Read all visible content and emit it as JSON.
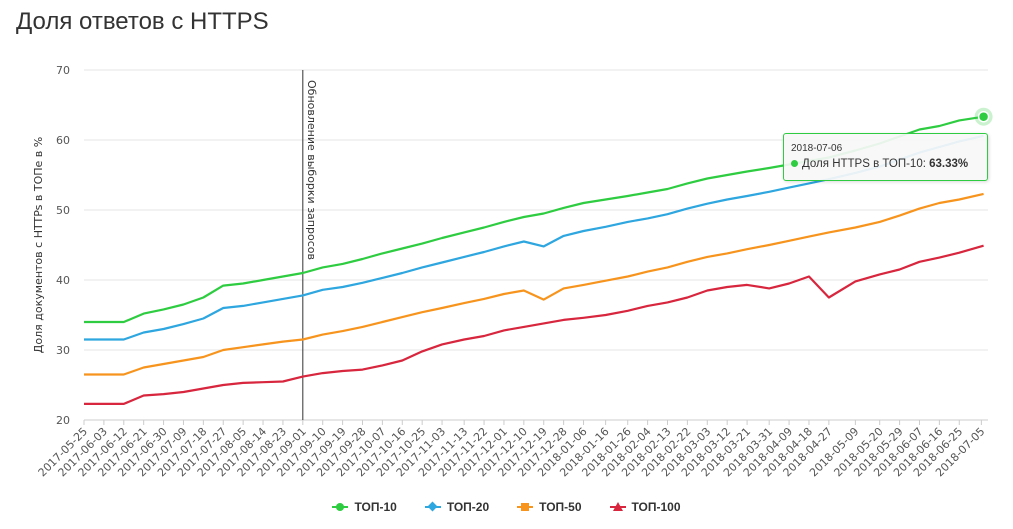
{
  "title": "Доля ответов с HTTPS",
  "tooltip": {
    "date": "2018-07-06",
    "series": "Доля HTTPS в ТОП-10",
    "value": "63.33%"
  },
  "chart_data": {
    "type": "line",
    "title": "Доля ответов с HTTPS",
    "ylabel": "Доля документов с HTTPs в ТОПе в %",
    "xlabel": "",
    "ylim": [
      20,
      70
    ],
    "yticks": [
      20,
      30,
      40,
      50,
      60,
      70
    ],
    "grid": true,
    "legend_position": "bottom",
    "x_ticks": [
      "2017-05-25",
      "2017-06-03",
      "2017-06-12",
      "2017-06-21",
      "2017-06-30",
      "2017-07-09",
      "2017-07-18",
      "2017-07-27",
      "2017-08-05",
      "2017-08-14",
      "2017-08-23",
      "2017-09-01",
      "2017-09-10",
      "2017-09-19",
      "2017-09-28",
      "2017-10-07",
      "2017-10-16",
      "2017-10-25",
      "2017-11-03",
      "2017-11-13",
      "2017-11-22",
      "2017-12-01",
      "2017-12-10",
      "2017-12-19",
      "2017-12-28",
      "2018-01-06",
      "2018-01-16",
      "2018-01-26",
      "2018-02-04",
      "2018-02-13",
      "2018-02-22",
      "2018-03-03",
      "2018-03-12",
      "2018-03-21",
      "2018-03-31",
      "2018-04-09",
      "2018-04-18",
      "2018-04-27",
      "2018-05-09",
      "2018-05-20",
      "2018-05-29",
      "2018-06-07",
      "2018-06-16",
      "2018-06-25",
      "2018-07-05"
    ],
    "annotation": {
      "date": "2017-09-01",
      "label": "Обновление выборки запросов"
    },
    "series": [
      {
        "name": "ТОП-10",
        "color": "#2ecc40",
        "marker": "circle",
        "x": [
          "2017-05-25",
          "2017-06-12",
          "2017-06-21",
          "2017-06-30",
          "2017-07-09",
          "2017-07-18",
          "2017-07-27",
          "2017-08-05",
          "2017-08-14",
          "2017-08-23",
          "2017-09-01",
          "2017-09-10",
          "2017-09-19",
          "2017-09-28",
          "2017-10-07",
          "2017-10-16",
          "2017-10-25",
          "2017-11-03",
          "2017-11-13",
          "2017-11-22",
          "2017-12-01",
          "2017-12-10",
          "2017-12-19",
          "2017-12-28",
          "2018-01-06",
          "2018-01-16",
          "2018-01-26",
          "2018-02-04",
          "2018-02-13",
          "2018-02-22",
          "2018-03-03",
          "2018-03-12",
          "2018-03-21",
          "2018-03-31",
          "2018-04-09",
          "2018-04-18",
          "2018-04-27",
          "2018-05-09",
          "2018-05-20",
          "2018-05-29",
          "2018-06-07",
          "2018-06-16",
          "2018-06-25",
          "2018-07-06"
        ],
        "y": [
          34.0,
          34.0,
          35.2,
          35.8,
          36.5,
          37.5,
          39.2,
          39.5,
          40.0,
          40.5,
          41.0,
          41.8,
          42.3,
          43.0,
          43.8,
          44.5,
          45.2,
          46.0,
          46.8,
          47.5,
          48.3,
          49.0,
          49.5,
          50.3,
          51.0,
          51.5,
          52.0,
          52.5,
          53.0,
          53.8,
          54.5,
          55.0,
          55.5,
          56.0,
          56.5,
          57.0,
          57.5,
          58.5,
          59.5,
          60.5,
          61.5,
          62.0,
          62.8,
          63.33
        ]
      },
      {
        "name": "ТОП-20",
        "color": "#2ea6df",
        "marker": "diamond",
        "x": [
          "2017-05-25",
          "2017-06-12",
          "2017-06-21",
          "2017-06-30",
          "2017-07-09",
          "2017-07-18",
          "2017-07-27",
          "2017-08-05",
          "2017-08-14",
          "2017-08-23",
          "2017-09-01",
          "2017-09-10",
          "2017-09-19",
          "2017-09-28",
          "2017-10-07",
          "2017-10-16",
          "2017-10-25",
          "2017-11-03",
          "2017-11-13",
          "2017-11-22",
          "2017-12-01",
          "2017-12-10",
          "2017-12-19",
          "2017-12-28",
          "2018-01-06",
          "2018-01-16",
          "2018-01-26",
          "2018-02-04",
          "2018-02-13",
          "2018-02-22",
          "2018-03-03",
          "2018-03-12",
          "2018-03-21",
          "2018-03-31",
          "2018-04-09",
          "2018-04-18",
          "2018-04-27",
          "2018-05-09",
          "2018-05-20",
          "2018-05-29",
          "2018-06-07",
          "2018-06-16",
          "2018-06-25",
          "2018-07-06"
        ],
        "y": [
          31.5,
          31.5,
          32.5,
          33.0,
          33.7,
          34.5,
          36.0,
          36.3,
          36.8,
          37.3,
          37.8,
          38.6,
          39.0,
          39.6,
          40.3,
          41.0,
          41.8,
          42.5,
          43.3,
          44.0,
          44.8,
          45.5,
          44.8,
          46.3,
          47.0,
          47.6,
          48.3,
          48.8,
          49.4,
          50.2,
          50.9,
          51.5,
          52.0,
          52.6,
          53.2,
          53.8,
          54.4,
          55.3,
          56.2,
          57.2,
          58.2,
          59.0,
          59.8,
          60.6
        ]
      },
      {
        "name": "ТОП-50",
        "color": "#f7941d",
        "marker": "square",
        "x": [
          "2017-05-25",
          "2017-06-12",
          "2017-06-21",
          "2017-06-30",
          "2017-07-09",
          "2017-07-18",
          "2017-07-27",
          "2017-08-05",
          "2017-08-14",
          "2017-08-23",
          "2017-09-01",
          "2017-09-10",
          "2017-09-19",
          "2017-09-28",
          "2017-10-07",
          "2017-10-16",
          "2017-10-25",
          "2017-11-03",
          "2017-11-13",
          "2017-11-22",
          "2017-12-01",
          "2017-12-10",
          "2017-12-19",
          "2017-12-28",
          "2018-01-06",
          "2018-01-16",
          "2018-01-26",
          "2018-02-04",
          "2018-02-13",
          "2018-02-22",
          "2018-03-03",
          "2018-03-12",
          "2018-03-21",
          "2018-03-31",
          "2018-04-09",
          "2018-04-18",
          "2018-04-27",
          "2018-05-09",
          "2018-05-20",
          "2018-05-29",
          "2018-06-07",
          "2018-06-16",
          "2018-06-25",
          "2018-07-06"
        ],
        "y": [
          26.5,
          26.5,
          27.5,
          28.0,
          28.5,
          29.0,
          30.0,
          30.4,
          30.8,
          31.2,
          31.5,
          32.2,
          32.7,
          33.3,
          34.0,
          34.7,
          35.4,
          36.0,
          36.7,
          37.3,
          38.0,
          38.5,
          37.2,
          38.8,
          39.3,
          39.9,
          40.5,
          41.2,
          41.8,
          42.6,
          43.3,
          43.8,
          44.4,
          45.0,
          45.6,
          46.2,
          46.8,
          47.5,
          48.3,
          49.2,
          50.2,
          51.0,
          51.5,
          52.3
        ]
      },
      {
        "name": "ТОП-100",
        "color": "#d7263d",
        "marker": "triangle",
        "x": [
          "2017-05-25",
          "2017-06-12",
          "2017-06-21",
          "2017-06-30",
          "2017-07-09",
          "2017-07-18",
          "2017-07-27",
          "2017-08-05",
          "2017-08-14",
          "2017-08-23",
          "2017-09-01",
          "2017-09-10",
          "2017-09-19",
          "2017-09-28",
          "2017-10-07",
          "2017-10-16",
          "2017-10-25",
          "2017-11-03",
          "2017-11-13",
          "2017-11-22",
          "2017-12-01",
          "2017-12-10",
          "2017-12-19",
          "2017-12-28",
          "2018-01-06",
          "2018-01-16",
          "2018-01-26",
          "2018-02-04",
          "2018-02-13",
          "2018-02-22",
          "2018-03-03",
          "2018-03-12",
          "2018-03-21",
          "2018-03-31",
          "2018-04-09",
          "2018-04-18",
          "2018-04-27",
          "2018-05-09",
          "2018-05-20",
          "2018-05-29",
          "2018-06-07",
          "2018-06-16",
          "2018-06-25",
          "2018-07-06"
        ],
        "y": [
          22.3,
          22.3,
          23.5,
          23.7,
          24.0,
          24.5,
          25.0,
          25.3,
          25.4,
          25.5,
          26.2,
          26.7,
          27.0,
          27.2,
          27.8,
          28.5,
          29.8,
          30.8,
          31.5,
          32.0,
          32.8,
          33.3,
          33.8,
          34.3,
          34.6,
          35.0,
          35.6,
          36.3,
          36.8,
          37.5,
          38.5,
          39.0,
          39.3,
          38.8,
          39.5,
          40.5,
          37.5,
          39.8,
          40.8,
          41.5,
          42.6,
          43.2,
          43.9,
          44.9
        ]
      }
    ]
  },
  "legend": [
    {
      "label": "ТОП-10"
    },
    {
      "label": "ТОП-20"
    },
    {
      "label": "ТОП-50"
    },
    {
      "label": "ТОП-100"
    }
  ]
}
